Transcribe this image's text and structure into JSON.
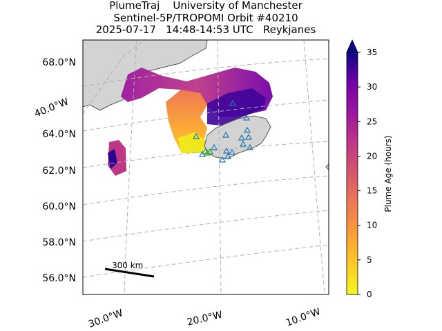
{
  "title": {
    "line1": "PlumeTraj    University of Manchester",
    "line2": "Sentinel-5P/TROPOMI Orbit #40210",
    "line3": "2025-07-17   14:48-14:53 UTC   Reykjanes"
  },
  "map": {
    "lat_labels": [
      "68.0°N",
      "64.0°N",
      "62.0°N",
      "60.0°N",
      "58.0°N",
      "56.0°N"
    ],
    "lon_labels": [
      "30.0°W",
      "20.0°W",
      "10.0°W"
    ],
    "meridian_label": "40.0°W",
    "scale_bar_label": "300 km",
    "land_color": "#d3d3d3",
    "gridline_color": "#b0b0b0"
  },
  "colorbar": {
    "label": "Plume Age (hours)",
    "ticks": [
      "0",
      "5",
      "10",
      "15",
      "20",
      "25",
      "30",
      "35"
    ],
    "tick_values": [
      0,
      5,
      10,
      15,
      20,
      25,
      30,
      35
    ],
    "max": 35,
    "colormap": "plasma_r",
    "extend": "max"
  },
  "markers": {
    "volcano_color": "#1f77b4",
    "source_color": "#2ca02c"
  }
}
